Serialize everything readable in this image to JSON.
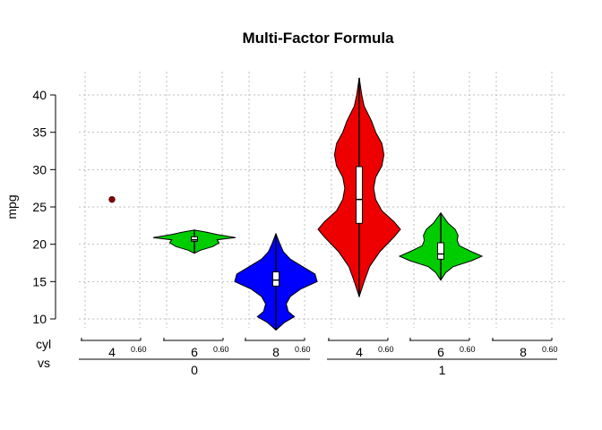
{
  "chart_data": {
    "type": "violin",
    "title": "Multi-Factor Formula",
    "ylabel": "mpg",
    "ylim": [
      8.3,
      42.8
    ],
    "yticks": [
      10,
      15,
      20,
      25,
      30,
      35,
      40
    ],
    "factor_labels": [
      "cyl",
      "vs"
    ],
    "width_label": "0.60",
    "groups": [
      {
        "vs": "0",
        "violins": [
          {
            "cyl": "4",
            "color": "#8b0000",
            "single_point": 26
          },
          {
            "cyl": "6",
            "color": "#00cd00",
            "profile": [
              [
                18.8,
                0.0
              ],
              [
                19.2,
                0.15
              ],
              [
                19.7,
                0.45
              ],
              [
                20.2,
                0.6
              ],
              [
                20.6,
                0.55
              ],
              [
                20.9,
                1.0
              ],
              [
                21.3,
                0.55
              ],
              [
                21.6,
                0.3
              ],
              [
                21.9,
                0.0
              ]
            ],
            "box": {
              "q1": 20.4,
              "median": 20.6,
              "q3": 21.0
            }
          },
          {
            "cyl": "8",
            "color": "#0000ff",
            "profile": [
              [
                8.5,
                0.0
              ],
              [
                9.5,
                0.2
              ],
              [
                10.3,
                0.45
              ],
              [
                11.0,
                0.3
              ],
              [
                12.0,
                0.25
              ],
              [
                13.0,
                0.35
              ],
              [
                14.0,
                0.6
              ],
              [
                15.0,
                1.0
              ],
              [
                16.0,
                0.95
              ],
              [
                17.0,
                0.65
              ],
              [
                18.0,
                0.35
              ],
              [
                19.0,
                0.18
              ],
              [
                20.0,
                0.1
              ],
              [
                21.4,
                0.0
              ]
            ],
            "box": {
              "q1": 14.4,
              "median": 15.2,
              "q3": 16.3
            }
          }
        ]
      },
      {
        "vs": "1",
        "violins": [
          {
            "cyl": "4",
            "color": "#ee0000",
            "profile": [
              [
                13.0,
                0.0
              ],
              [
                15.0,
                0.12
              ],
              [
                17.0,
                0.25
              ],
              [
                19.0,
                0.5
              ],
              [
                21.0,
                0.85
              ],
              [
                22.0,
                1.0
              ],
              [
                23.0,
                0.85
              ],
              [
                24.5,
                0.55
              ],
              [
                26.0,
                0.4
              ],
              [
                27.5,
                0.35
              ],
              [
                29.0,
                0.4
              ],
              [
                30.5,
                0.55
              ],
              [
                32.0,
                0.6
              ],
              [
                33.5,
                0.55
              ],
              [
                35.0,
                0.4
              ],
              [
                36.5,
                0.3
              ],
              [
                38.5,
                0.12
              ],
              [
                40.0,
                0.06
              ],
              [
                42.3,
                0.0
              ]
            ],
            "box": {
              "q1": 22.8,
              "median": 26.0,
              "q3": 30.4
            }
          },
          {
            "cyl": "6",
            "color": "#00cd00",
            "profile": [
              [
                15.2,
                0.0
              ],
              [
                16.2,
                0.12
              ],
              [
                17.0,
                0.3
              ],
              [
                17.8,
                0.75
              ],
              [
                18.4,
                1.0
              ],
              [
                19.0,
                0.75
              ],
              [
                19.8,
                0.45
              ],
              [
                20.5,
                0.4
              ],
              [
                21.2,
                0.42
              ],
              [
                22.0,
                0.35
              ],
              [
                22.8,
                0.18
              ],
              [
                24.2,
                0.0
              ]
            ],
            "box": {
              "q1": 18.0,
              "median": 18.7,
              "q3": 20.2
            }
          },
          {
            "cyl": "8",
            "color": "#0000ff",
            "empty": true
          }
        ]
      }
    ]
  }
}
